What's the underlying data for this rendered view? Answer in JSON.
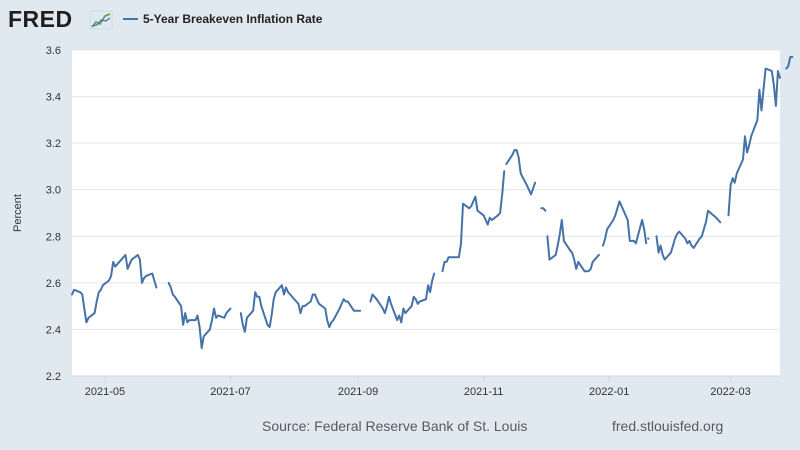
{
  "header": {
    "logo_text": "FRED",
    "legend_label": "5-Year Breakeven Inflation Rate"
  },
  "footer": {
    "source": "Source: Federal Reserve Bank of St. Louis",
    "website": "fred.stlouisfed.org"
  },
  "colors": {
    "series": "#4572a7",
    "background": "#e1e9f0",
    "plot_background": "#ffffff",
    "gridline": "#e6e6e6"
  },
  "chart_data": {
    "type": "line",
    "title": "5-Year Breakeven Inflation Rate",
    "xlabel": "",
    "ylabel": "Percent",
    "ylim": [
      2.2,
      3.6
    ],
    "yticks": [
      2.2,
      2.4,
      2.6,
      2.8,
      3.0,
      3.2,
      3.4,
      3.6
    ],
    "xlim": [
      "2021-04-15",
      "2022-03-25"
    ],
    "xticks": [
      {
        "date": "2021-05-01",
        "label": "2021-05"
      },
      {
        "date": "2021-07-01",
        "label": "2021-07"
      },
      {
        "date": "2021-09-01",
        "label": "2021-09"
      },
      {
        "date": "2021-11-01",
        "label": "2021-11"
      },
      {
        "date": "2022-01-01",
        "label": "2022-01"
      },
      {
        "date": "2022-03-01",
        "label": "2022-03"
      }
    ],
    "grid": "horizontal",
    "series": [
      {
        "name": "5-Year Breakeven Inflation Rate",
        "unit": "Percent",
        "segments": [
          [
            [
              "2021-04-15",
              2.55
            ],
            [
              "2021-04-16",
              2.57
            ],
            [
              "2021-04-19",
              2.56
            ],
            [
              "2021-04-20",
              2.55
            ],
            [
              "2021-04-21",
              2.49
            ],
            [
              "2021-04-22",
              2.43
            ],
            [
              "2021-04-23",
              2.45
            ],
            [
              "2021-04-26",
              2.47
            ],
            [
              "2021-04-27",
              2.52
            ],
            [
              "2021-04-28",
              2.56
            ],
            [
              "2021-04-29",
              2.57
            ],
            [
              "2021-04-30",
              2.59
            ],
            [
              "2021-05-03",
              2.61
            ],
            [
              "2021-05-04",
              2.63
            ],
            [
              "2021-05-05",
              2.69
            ],
            [
              "2021-05-06",
              2.67
            ],
            [
              "2021-05-07",
              2.68
            ],
            [
              "2021-05-10",
              2.71
            ],
            [
              "2021-05-11",
              2.72
            ],
            [
              "2021-05-12",
              2.66
            ],
            [
              "2021-05-13",
              2.68
            ],
            [
              "2021-05-14",
              2.7
            ],
            [
              "2021-05-17",
              2.72
            ],
            [
              "2021-05-18",
              2.7
            ],
            [
              "2021-05-19",
              2.6
            ],
            [
              "2021-05-20",
              2.62
            ],
            [
              "2021-05-21",
              2.63
            ],
            [
              "2021-05-24",
              2.64
            ],
            [
              "2021-05-25",
              2.61
            ],
            [
              "2021-05-26",
              2.58
            ]
          ],
          [
            [
              "2021-06-01",
              2.6
            ],
            [
              "2021-06-02",
              2.58
            ],
            [
              "2021-06-03",
              2.55
            ],
            [
              "2021-06-04",
              2.54
            ],
            [
              "2021-06-07",
              2.5
            ],
            [
              "2021-06-08",
              2.42
            ],
            [
              "2021-06-09",
              2.47
            ],
            [
              "2021-06-10",
              2.43
            ],
            [
              "2021-06-11",
              2.44
            ],
            [
              "2021-06-14",
              2.44
            ],
            [
              "2021-06-15",
              2.46
            ],
            [
              "2021-06-16",
              2.41
            ],
            [
              "2021-06-17",
              2.32
            ],
            [
              "2021-06-18",
              2.37
            ],
            [
              "2021-06-21",
              2.4
            ],
            [
              "2021-06-22",
              2.44
            ],
            [
              "2021-06-23",
              2.49
            ],
            [
              "2021-06-24",
              2.45
            ],
            [
              "2021-06-25",
              2.46
            ],
            [
              "2021-06-28",
              2.45
            ],
            [
              "2021-06-29",
              2.47
            ],
            [
              "2021-06-30",
              2.48
            ],
            [
              "2021-07-01",
              2.49
            ]
          ],
          [
            [
              "2021-07-06",
              2.47
            ],
            [
              "2021-07-07",
              2.42
            ],
            [
              "2021-07-08",
              2.39
            ],
            [
              "2021-07-09",
              2.45
            ],
            [
              "2021-07-12",
              2.48
            ],
            [
              "2021-07-13",
              2.56
            ],
            [
              "2021-07-14",
              2.54
            ],
            [
              "2021-07-15",
              2.54
            ],
            [
              "2021-07-16",
              2.5
            ],
            [
              "2021-07-19",
              2.42
            ],
            [
              "2021-07-20",
              2.41
            ],
            [
              "2021-07-21",
              2.46
            ],
            [
              "2021-07-22",
              2.53
            ],
            [
              "2021-07-23",
              2.56
            ],
            [
              "2021-07-26",
              2.59
            ],
            [
              "2021-07-27",
              2.55
            ],
            [
              "2021-07-28",
              2.58
            ],
            [
              "2021-07-29",
              2.56
            ],
            [
              "2021-07-30",
              2.55
            ],
            [
              "2021-08-02",
              2.52
            ],
            [
              "2021-08-03",
              2.51
            ],
            [
              "2021-08-04",
              2.47
            ],
            [
              "2021-08-05",
              2.5
            ],
            [
              "2021-08-06",
              2.5
            ],
            [
              "2021-08-09",
              2.52
            ],
            [
              "2021-08-10",
              2.55
            ],
            [
              "2021-08-11",
              2.55
            ],
            [
              "2021-08-12",
              2.53
            ],
            [
              "2021-08-13",
              2.51
            ],
            [
              "2021-08-16",
              2.49
            ],
            [
              "2021-08-17",
              2.44
            ],
            [
              "2021-08-18",
              2.41
            ],
            [
              "2021-08-19",
              2.43
            ],
            [
              "2021-08-20",
              2.44
            ],
            [
              "2021-08-23",
              2.49
            ],
            [
              "2021-08-24",
              2.51
            ],
            [
              "2021-08-25",
              2.53
            ],
            [
              "2021-08-26",
              2.52
            ],
            [
              "2021-08-27",
              2.52
            ],
            [
              "2021-08-30",
              2.48
            ],
            [
              "2021-08-31",
              2.48
            ],
            [
              "2021-09-01",
              2.48
            ],
            [
              "2021-09-02",
              2.48
            ]
          ],
          [
            [
              "2021-09-07",
              2.52
            ],
            [
              "2021-09-08",
              2.55
            ],
            [
              "2021-09-09",
              2.54
            ],
            [
              "2021-09-10",
              2.53
            ],
            [
              "2021-09-13",
              2.49
            ],
            [
              "2021-09-14",
              2.47
            ],
            [
              "2021-09-15",
              2.5
            ],
            [
              "2021-09-16",
              2.54
            ],
            [
              "2021-09-17",
              2.51
            ],
            [
              "2021-09-20",
              2.44
            ],
            [
              "2021-09-21",
              2.46
            ],
            [
              "2021-09-22",
              2.43
            ],
            [
              "2021-09-23",
              2.49
            ],
            [
              "2021-09-24",
              2.47
            ],
            [
              "2021-09-27",
              2.5
            ],
            [
              "2021-09-28",
              2.54
            ],
            [
              "2021-09-29",
              2.53
            ],
            [
              "2021-09-30",
              2.51
            ],
            [
              "2021-10-01",
              2.52
            ],
            [
              "2021-10-04",
              2.53
            ],
            [
              "2021-10-05",
              2.59
            ],
            [
              "2021-10-06",
              2.56
            ],
            [
              "2021-10-07",
              2.61
            ],
            [
              "2021-10-08",
              2.64
            ]
          ],
          [
            [
              "2021-10-12",
              2.65
            ],
            [
              "2021-10-13",
              2.69
            ],
            [
              "2021-10-14",
              2.69
            ],
            [
              "2021-10-15",
              2.71
            ],
            [
              "2021-10-18",
              2.71
            ],
            [
              "2021-10-19",
              2.71
            ],
            [
              "2021-10-20",
              2.71
            ],
            [
              "2021-10-21",
              2.77
            ],
            [
              "2021-10-22",
              2.94
            ],
            [
              "2021-10-25",
              2.92
            ],
            [
              "2021-10-26",
              2.93
            ],
            [
              "2021-10-27",
              2.95
            ],
            [
              "2021-10-28",
              2.97
            ],
            [
              "2021-10-29",
              2.91
            ],
            [
              "2021-11-01",
              2.89
            ],
            [
              "2021-11-02",
              2.87
            ],
            [
              "2021-11-03",
              2.85
            ],
            [
              "2021-11-04",
              2.88
            ],
            [
              "2021-11-05",
              2.87
            ],
            [
              "2021-11-08",
              2.89
            ],
            [
              "2021-11-09",
              2.9
            ],
            [
              "2021-11-10",
              2.98
            ],
            [
              "2021-11-11",
              3.08
            ]
          ],
          [
            [
              "2021-11-12",
              3.11
            ],
            [
              "2021-11-15",
              3.15
            ],
            [
              "2021-11-16",
              3.17
            ],
            [
              "2021-11-17",
              3.17
            ],
            [
              "2021-11-18",
              3.14
            ],
            [
              "2021-11-19",
              3.07
            ],
            [
              "2021-11-22",
              3.02
            ],
            [
              "2021-11-23",
              3.0
            ],
            [
              "2021-11-24",
              2.98
            ],
            [
              "2021-11-26",
              3.03
            ]
          ],
          [
            [
              "2021-11-29",
              2.92
            ],
            [
              "2021-11-30",
              2.92
            ],
            [
              "2021-12-01",
              2.91
            ]
          ],
          [
            [
              "2021-12-02",
              2.8
            ],
            [
              "2021-12-03",
              2.7
            ],
            [
              "2021-12-06",
              2.72
            ],
            [
              "2021-12-07",
              2.76
            ],
            [
              "2021-12-08",
              2.81
            ],
            [
              "2021-12-09",
              2.87
            ],
            [
              "2021-12-10",
              2.78
            ],
            [
              "2021-12-13",
              2.74
            ],
            [
              "2021-12-14",
              2.73
            ],
            [
              "2021-12-15",
              2.7
            ],
            [
              "2021-12-16",
              2.66
            ],
            [
              "2021-12-17",
              2.69
            ],
            [
              "2021-12-20",
              2.65
            ],
            [
              "2021-12-21",
              2.65
            ],
            [
              "2021-12-22",
              2.65
            ],
            [
              "2021-12-23",
              2.66
            ],
            [
              "2021-12-24",
              2.69
            ],
            [
              "2021-12-27",
              2.72
            ]
          ],
          [
            [
              "2021-12-29",
              2.76
            ],
            [
              "2021-12-30",
              2.79
            ],
            [
              "2021-12-31",
              2.83
            ],
            [
              "2022-01-03",
              2.87
            ],
            [
              "2022-01-04",
              2.89
            ],
            [
              "2022-01-05",
              2.92
            ],
            [
              "2022-01-06",
              2.95
            ],
            [
              "2022-01-07",
              2.93
            ],
            [
              "2022-01-10",
              2.87
            ],
            [
              "2022-01-11",
              2.78
            ],
            [
              "2022-01-12",
              2.78
            ],
            [
              "2022-01-13",
              2.78
            ],
            [
              "2022-01-14",
              2.77
            ],
            [
              "2022-01-17",
              2.87
            ],
            [
              "2022-01-18",
              2.83
            ],
            [
              "2022-01-19",
              2.77
            ]
          ],
          [
            [
              "2022-01-20",
              2.79
            ]
          ],
          [
            [
              "2022-01-24",
              2.8
            ],
            [
              "2022-01-25",
              2.73
            ],
            [
              "2022-01-26",
              2.76
            ],
            [
              "2022-01-27",
              2.72
            ],
            [
              "2022-01-28",
              2.7
            ],
            [
              "2022-01-31",
              2.73
            ],
            [
              "2022-02-01",
              2.76
            ],
            [
              "2022-02-02",
              2.79
            ],
            [
              "2022-02-03",
              2.81
            ],
            [
              "2022-02-04",
              2.82
            ],
            [
              "2022-02-07",
              2.79
            ],
            [
              "2022-02-08",
              2.77
            ],
            [
              "2022-02-09",
              2.78
            ],
            [
              "2022-02-10",
              2.76
            ],
            [
              "2022-02-11",
              2.75
            ],
            [
              "2022-02-14",
              2.79
            ],
            [
              "2022-02-15",
              2.8
            ],
            [
              "2022-02-16",
              2.83
            ],
            [
              "2022-02-17",
              2.86
            ],
            [
              "2022-02-18",
              2.91
            ],
            [
              "2022-02-22",
              2.88
            ],
            [
              "2022-02-23",
              2.87
            ],
            [
              "2022-02-24",
              2.86
            ]
          ],
          [
            [
              "2022-02-28",
              2.89
            ],
            [
              "2022-03-01",
              3.02
            ],
            [
              "2022-03-02",
              3.05
            ],
            [
              "2022-03-03",
              3.03
            ],
            [
              "2022-03-04",
              3.07
            ],
            [
              "2022-03-07",
              3.13
            ],
            [
              "2022-03-08",
              3.23
            ],
            [
              "2022-03-09",
              3.16
            ],
            [
              "2022-03-10",
              3.19
            ],
            [
              "2022-03-11",
              3.23
            ],
            [
              "2022-03-14",
              3.3
            ],
            [
              "2022-03-15",
              3.43
            ],
            [
              "2022-03-16",
              3.34
            ],
            [
              "2022-03-17",
              3.43
            ],
            [
              "2022-03-18",
              3.52
            ],
            [
              "2022-03-21",
              3.51
            ],
            [
              "2022-03-22",
              3.45
            ],
            [
              "2022-03-23",
              3.36
            ],
            [
              "2022-03-24",
              3.51
            ],
            [
              "2022-03-25",
              3.48
            ]
          ],
          [
            [
              "2022-03-28",
              3.52
            ],
            [
              "2022-03-29",
              3.53
            ],
            [
              "2022-03-30",
              3.57
            ],
            [
              "2022-03-31",
              3.57
            ]
          ]
        ]
      }
    ]
  }
}
